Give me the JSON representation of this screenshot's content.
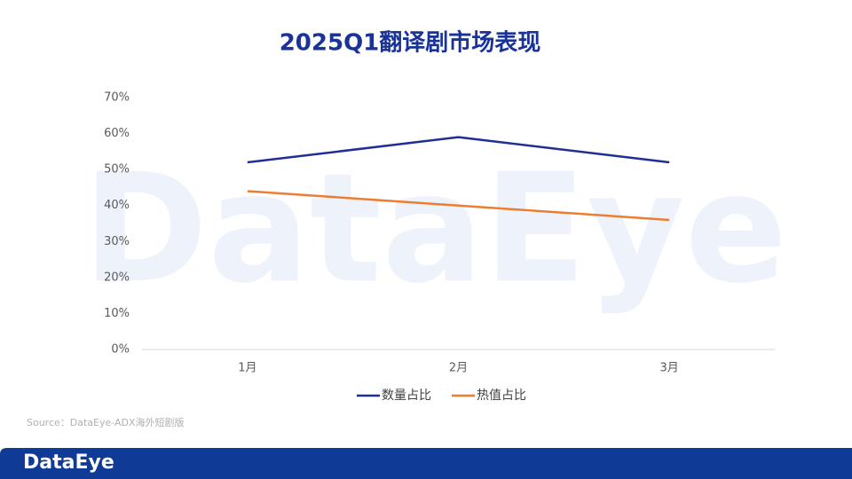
{
  "chart_data": {
    "type": "line",
    "title": "2025Q1翻译剧市场表现",
    "categories": [
      "1月",
      "2月",
      "3月"
    ],
    "series": [
      {
        "name": "数量占比",
        "color": "#1f2f96",
        "values": [
          52,
          59,
          52
        ]
      },
      {
        "name": "热值占比",
        "color": "#ed7d31",
        "values": [
          44,
          40,
          36
        ]
      }
    ],
    "ylim": [
      0,
      70
    ],
    "yticks": [
      {
        "value": 0,
        "label": "0%"
      },
      {
        "value": 10,
        "label": "10%"
      },
      {
        "value": 20,
        "label": "20%"
      },
      {
        "value": 30,
        "label": "30%"
      },
      {
        "value": 40,
        "label": "40%"
      },
      {
        "value": 50,
        "label": "50%"
      },
      {
        "value": 60,
        "label": "60%"
      },
      {
        "value": 70,
        "label": "70%"
      }
    ],
    "grid": false,
    "legend": "bottom",
    "source": "Source：DataEye-ADX海外短剧版",
    "watermark": "DataEye",
    "logo": "DataEye"
  }
}
